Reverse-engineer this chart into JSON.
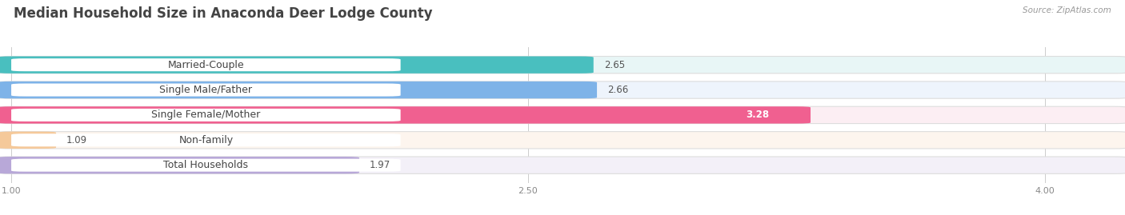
{
  "title": "Median Household Size in Anaconda Deer Lodge County",
  "source": "Source: ZipAtlas.com",
  "categories": [
    "Married-Couple",
    "Single Male/Father",
    "Single Female/Mother",
    "Non-family",
    "Total Households"
  ],
  "values": [
    2.65,
    2.66,
    3.28,
    1.09,
    1.97
  ],
  "bar_colors": [
    "#49BFBF",
    "#7EB3E8",
    "#F06090",
    "#F5C99A",
    "#B8A8D8"
  ],
  "bar_bg_colors": [
    "#E8F6F6",
    "#EEF4FC",
    "#FCEEF3",
    "#FDF5EE",
    "#F3F0F8"
  ],
  "label_bg_color": "#FFFFFF",
  "xlim_left": 1.0,
  "xlim_right": 4.2,
  "xticks": [
    1.0,
    2.5,
    4.0
  ],
  "title_fontsize": 12,
  "label_fontsize": 9,
  "value_fontsize": 8.5,
  "background_color": "#FFFFFF",
  "bar_height": 0.6,
  "value_inside_color": "#FFFFFF",
  "value_outside_color": "#555555",
  "inside_value_bars": [
    "Single Female/Mother"
  ]
}
